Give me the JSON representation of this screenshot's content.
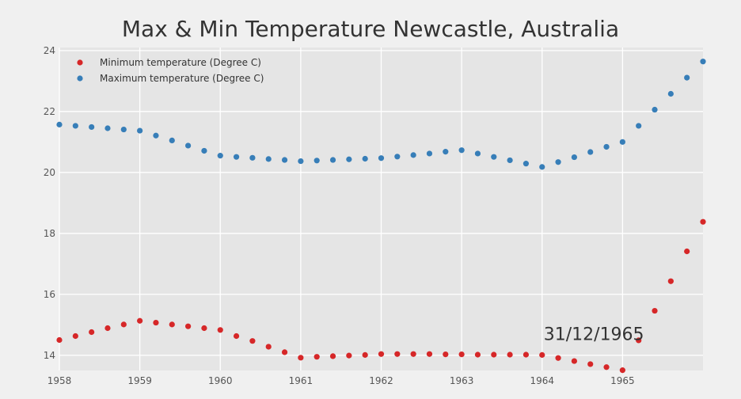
{
  "chart_data": {
    "type": "scatter",
    "title": "Max & Min Temperature Newcastle, Australia",
    "xlabel": "",
    "ylabel": "",
    "xlim": [
      1958,
      1966
    ],
    "ylim": [
      13.5,
      24.1
    ],
    "x_ticks": [
      1958,
      1959,
      1960,
      1961,
      1962,
      1963,
      1964,
      1965
    ],
    "x_tick_labels": [
      "1958",
      "1959",
      "1960",
      "1961",
      "1962",
      "1963",
      "1964",
      "1965"
    ],
    "y_ticks": [
      14,
      16,
      18,
      20,
      22,
      24
    ],
    "y_tick_labels": [
      "14",
      "16",
      "18",
      "20",
      "22",
      "24"
    ],
    "grid": true,
    "legend_position": "top-left",
    "annotation": {
      "text": "31/12/1965",
      "x": 1964.0,
      "y": 14.6
    },
    "x": [
      1958.0,
      1958.2,
      1958.4,
      1958.6,
      1958.8,
      1959.0,
      1959.2,
      1959.4,
      1959.6,
      1959.8,
      1960.0,
      1960.2,
      1960.4,
      1960.6,
      1960.8,
      1961.0,
      1961.2,
      1961.4,
      1961.6,
      1961.8,
      1962.0,
      1962.2,
      1962.4,
      1962.6,
      1962.8,
      1963.0,
      1963.2,
      1963.4,
      1963.6,
      1963.8,
      1964.0,
      1964.2,
      1964.4,
      1964.6,
      1964.8,
      1965.0,
      1965.2,
      1965.4,
      1965.6,
      1965.8,
      1966.0
    ],
    "series": [
      {
        "name": "Minimum temperature (Degree C)",
        "color": "#d62728",
        "values": [
          14.5,
          14.63,
          14.76,
          14.89,
          15.01,
          15.13,
          15.07,
          15.01,
          14.95,
          14.89,
          14.83,
          14.63,
          14.47,
          14.28,
          14.1,
          13.92,
          13.95,
          13.97,
          13.99,
          14.01,
          14.04,
          14.04,
          14.04,
          14.04,
          14.03,
          14.03,
          14.02,
          14.02,
          14.02,
          14.02,
          14.01,
          13.91,
          13.81,
          13.71,
          13.61,
          13.51,
          14.49,
          15.46,
          16.43,
          17.41,
          18.38
        ]
      },
      {
        "name": "Maximum temperature (Degree C)",
        "color": "#377eb8",
        "values": [
          21.57,
          21.53,
          21.49,
          21.45,
          21.41,
          21.37,
          21.21,
          21.05,
          20.88,
          20.71,
          20.55,
          20.51,
          20.48,
          20.44,
          20.41,
          20.37,
          20.39,
          20.41,
          20.43,
          20.45,
          20.47,
          20.52,
          20.57,
          20.62,
          20.68,
          20.73,
          20.62,
          20.51,
          20.4,
          20.29,
          20.18,
          20.34,
          20.5,
          20.67,
          20.84,
          21.0,
          21.53,
          22.06,
          22.58,
          23.11,
          23.64
        ]
      }
    ]
  }
}
